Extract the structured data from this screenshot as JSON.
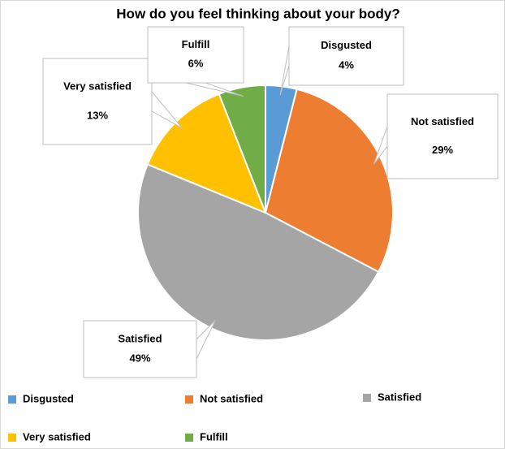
{
  "chart_data": {
    "type": "pie",
    "title": "How do you feel thinking about your body?",
    "categories": [
      "Disgusted",
      "Not satisfied",
      "Satisfied",
      "Very satisfied",
      "Fulfill"
    ],
    "values": [
      4,
      29,
      49,
      13,
      6
    ],
    "value_labels": [
      "4%",
      "29%",
      "49%",
      "13%",
      "6%"
    ],
    "colors": [
      "#5b9bd5",
      "#ed7d31",
      "#a5a5a5",
      "#ffc000",
      "#70ad47"
    ]
  }
}
